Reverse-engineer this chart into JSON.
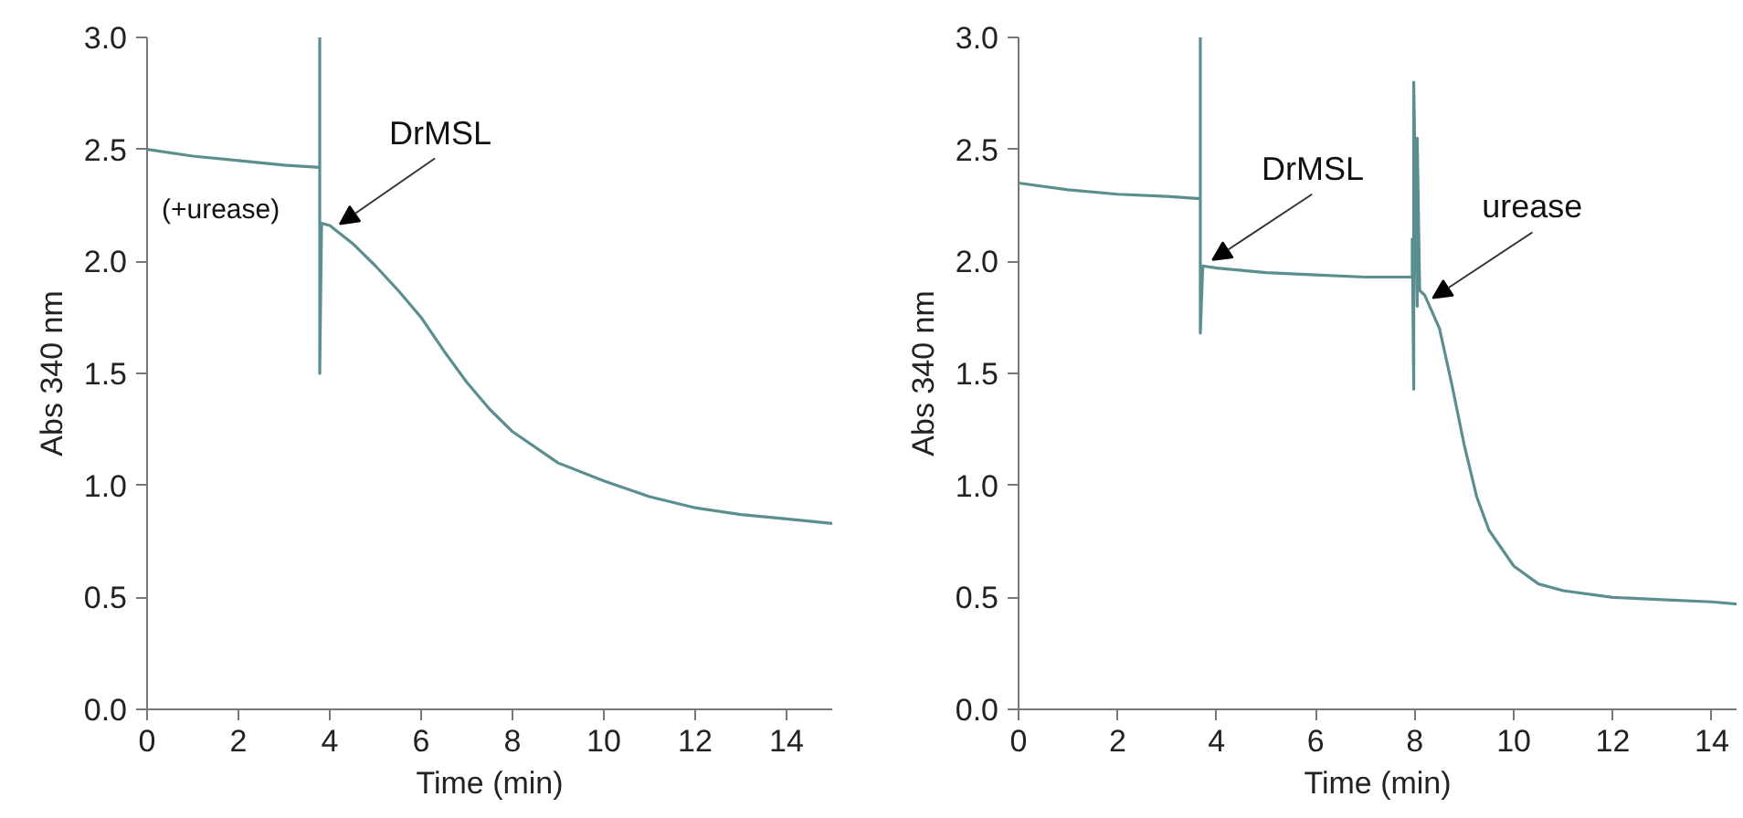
{
  "chart_data": [
    {
      "type": "line",
      "xlabel": "Time (min)",
      "ylabel": "Abs 340 nm",
      "xlim": [
        0,
        15
      ],
      "ylim": [
        0,
        3
      ],
      "xticks": [
        0,
        2,
        4,
        6,
        8,
        10,
        12,
        14
      ],
      "yticks": [
        {
          "value": 0,
          "label": "0.0"
        },
        {
          "value": 0.5,
          "label": "0.5"
        },
        {
          "value": 1,
          "label": "1.0"
        },
        {
          "value": 1.5,
          "label": "1.5"
        },
        {
          "value": 2,
          "label": "2.0"
        },
        {
          "value": 2.5,
          "label": "2.5"
        },
        {
          "value": 3,
          "label": "3.0"
        }
      ],
      "grid": false,
      "marker": "none",
      "line_style": "solid",
      "series": [
        {
          "color": "#5b8f8f",
          "x": [
            0,
            1,
            2,
            3,
            3.78,
            3.78,
            3.78,
            3.82,
            4,
            4.5,
            5,
            5.5,
            6,
            6.5,
            7,
            7.5,
            8,
            9,
            10,
            11,
            12,
            13,
            14,
            15
          ],
          "values": [
            2.5,
            2.47,
            2.45,
            2.43,
            2.42,
            3.0,
            1.5,
            2.17,
            2.16,
            2.08,
            1.98,
            1.87,
            1.75,
            1.6,
            1.46,
            1.34,
            1.24,
            1.1,
            1.02,
            0.95,
            0.9,
            0.87,
            0.85,
            0.83
          ]
        }
      ],
      "annotations": [
        {
          "text": "DrMSL",
          "x": 4.1,
          "y": 2.15
        },
        "(+urease)"
      ]
    },
    {
      "type": "line",
      "xlabel": "Time (min)",
      "ylabel": "Abs 340 nm",
      "xlim": [
        0,
        14.5
      ],
      "ylim": [
        0,
        3
      ],
      "xticks": [
        0,
        2,
        4,
        6,
        8,
        10,
        12,
        14
      ],
      "yticks": [
        {
          "value": 0,
          "label": "0.0"
        },
        {
          "value": 0.5,
          "label": "0.5"
        },
        {
          "value": 1,
          "label": "1.0"
        },
        {
          "value": 1.5,
          "label": "1.5"
        },
        {
          "value": 2,
          "label": "2.0"
        },
        {
          "value": 2.5,
          "label": "2.5"
        },
        {
          "value": 3,
          "label": "3.0"
        }
      ],
      "grid": false,
      "marker": "none",
      "line_style": "solid",
      "series": [
        {
          "color": "#5b8f8f",
          "x": [
            0,
            1,
            2,
            3,
            3.67,
            3.67,
            3.67,
            3.72,
            4,
            5,
            6,
            7,
            7.95,
            7.95,
            7.98,
            7.98,
            8.05,
            8.05,
            8.1,
            8.2,
            8.5,
            8.75,
            9,
            9.25,
            9.5,
            10,
            10.5,
            11,
            12,
            13,
            14,
            14.5
          ],
          "values": [
            2.35,
            2.32,
            2.3,
            2.29,
            2.28,
            3.0,
            1.68,
            1.98,
            1.97,
            1.95,
            1.94,
            1.93,
            1.93,
            2.1,
            1.43,
            2.8,
            1.8,
            2.55,
            1.87,
            1.85,
            1.7,
            1.45,
            1.18,
            0.95,
            0.8,
            0.64,
            0.56,
            0.53,
            0.5,
            0.49,
            0.48,
            0.47
          ]
        }
      ],
      "annotations": [
        {
          "text": "DrMSL",
          "x": 3.8,
          "y": 1.99
        },
        {
          "text": "urease",
          "x": 8.25,
          "y": 1.82
        }
      ]
    }
  ]
}
